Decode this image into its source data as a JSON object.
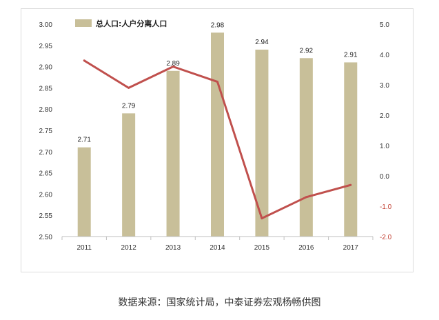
{
  "chart_data": {
    "type": "bar",
    "categories": [
      "2011",
      "2012",
      "2013",
      "2014",
      "2015",
      "2016",
      "2017"
    ],
    "series": [
      {
        "name": "总人口:人户分离人口",
        "type": "bar",
        "axis": "left",
        "color": "#c8bf99",
        "values": [
          2.71,
          2.79,
          2.89,
          2.98,
          2.94,
          2.92,
          2.91
        ],
        "labels": [
          "2.71",
          "2.79",
          "2.89",
          "2.98",
          "2.94",
          "2.92",
          "2.91"
        ]
      },
      {
        "type": "line",
        "axis": "right",
        "color": "#c0504d",
        "values": [
          3.8,
          2.9,
          3.6,
          3.1,
          -1.4,
          -0.7,
          -0.3
        ]
      }
    ],
    "y_left": {
      "min": 2.5,
      "max": 3.0,
      "ticks": [
        "2.50",
        "2.55",
        "2.60",
        "2.65",
        "2.70",
        "2.75",
        "2.80",
        "2.85",
        "2.90",
        "2.95",
        "3.00"
      ]
    },
    "y_right": {
      "min": -2.0,
      "max": 5.0,
      "ticks": [
        "-2.0",
        "-1.0",
        "0.0",
        "1.0",
        "2.0",
        "3.0",
        "4.0",
        "5.0"
      ],
      "negative_color": "#c0392b"
    },
    "grid": false,
    "legend_position": "top-left"
  },
  "source_note": "数据来源：国家统计局，中泰证券宏观杨畅供图"
}
